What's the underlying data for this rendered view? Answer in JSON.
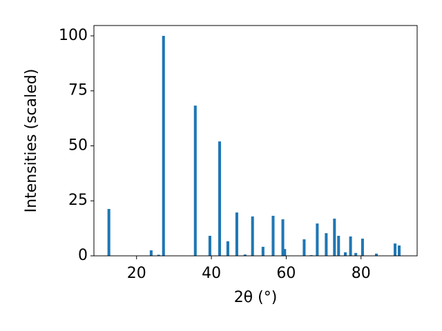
{
  "chart_data": {
    "type": "bar",
    "x": [
      12.6,
      23.9,
      25.9,
      27.2,
      35.7,
      39.6,
      42.2,
      44.4,
      46.8,
      49.0,
      51.0,
      53.8,
      56.5,
      59.1,
      59.6,
      64.8,
      66.7,
      68.3,
      70.7,
      72.9,
      74.0,
      75.8,
      77.2,
      78.6,
      80.4,
      84.1,
      89.1,
      90.2
    ],
    "values": [
      21.3,
      2.5,
      0.5,
      100,
      68.3,
      9.1,
      52,
      6.6,
      19.7,
      0.6,
      17.9,
      4.1,
      18.2,
      16.6,
      3.1,
      7.5,
      0.3,
      14.7,
      10.3,
      16.9,
      9.1,
      1.6,
      8.8,
      1.3,
      7.8,
      1.0,
      5.6,
      4.7
    ],
    "color": "#1f77b4",
    "xlabel": "2θ (°)",
    "ylabel": "Intensities (scaled)",
    "xlim": [
      8.6,
      95
    ],
    "ylim": [
      0,
      104.7
    ],
    "xticks": [
      20,
      40,
      60,
      80
    ],
    "yticks": [
      0,
      25,
      50,
      75,
      100
    ]
  }
}
